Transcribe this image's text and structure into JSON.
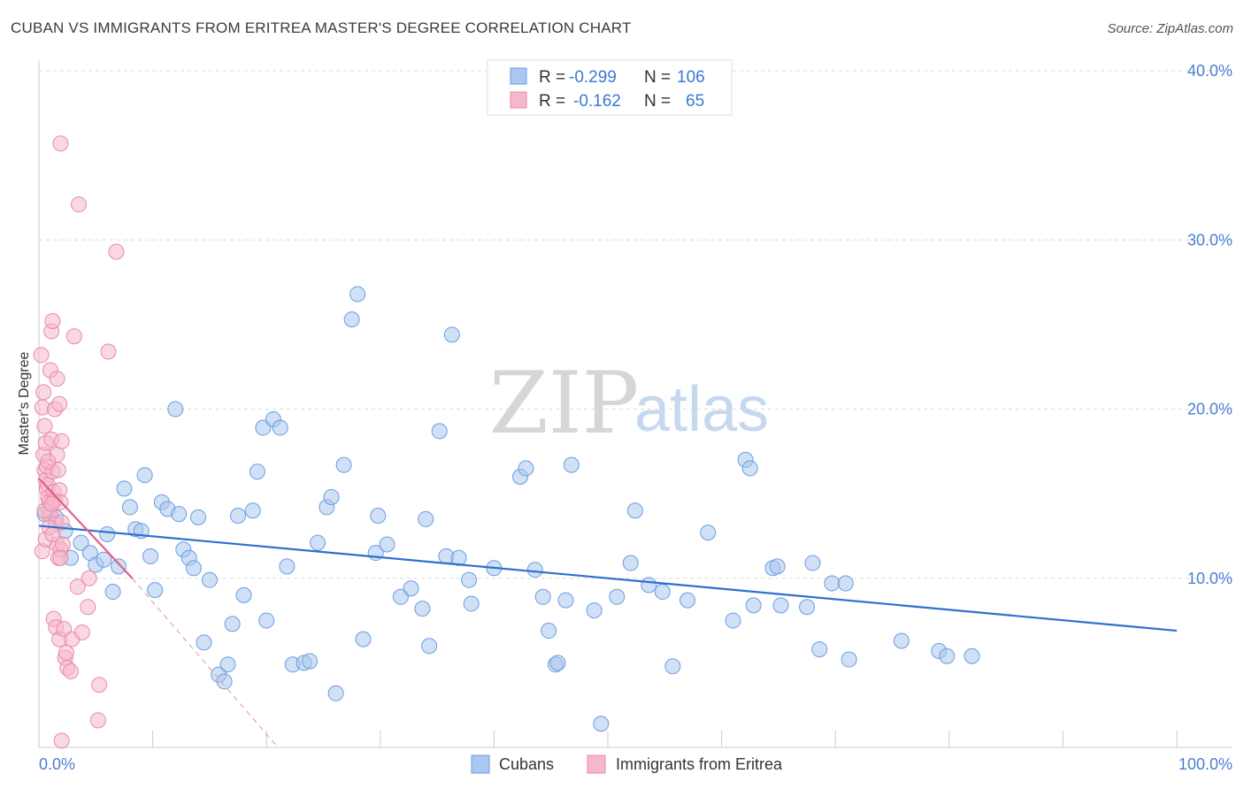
{
  "header": {
    "title": "CUBAN VS IMMIGRANTS FROM ERITREA MASTER'S DEGREE CORRELATION CHART",
    "source": "Source: ZipAtlas.com"
  },
  "watermark": {
    "zip": "ZIP",
    "atlas": "atlas"
  },
  "legend_box": {
    "rows": [
      {
        "r_label": "R =",
        "r_value": "-0.299",
        "n_label": "N =",
        "n_value": "106",
        "color": "#a9c7ef"
      },
      {
        "r_label": "R =",
        "r_value": "-0.162",
        "n_label": "N =",
        "n_value": "65",
        "color": "#f5b8cb"
      }
    ]
  },
  "bottom_legend": [
    {
      "label": "Cubans",
      "color": "#a9c7ef"
    },
    {
      "label": "Immigrants from Eritrea",
      "color": "#f5b8cb"
    }
  ],
  "chart_data": {
    "type": "scatter",
    "xlabel": "",
    "ylabel": "Master's Degree",
    "xlim": [
      0,
      100
    ],
    "ylim": [
      0,
      40
    ],
    "x_tick_labels": [
      "0.0%",
      "100.0%"
    ],
    "y_ticks": [
      10,
      20,
      30,
      40
    ],
    "y_tick_labels": [
      "10.0%",
      "20.0%",
      "30.0%",
      "40.0%"
    ],
    "grid": true,
    "legend_placement": "top-center",
    "series": [
      {
        "name": "Cubans",
        "color": "#a9c7ef",
        "stroke": "#6a9ee0",
        "trend": {
          "x0": 0,
          "y0": 13.1,
          "x1": 100,
          "y1": 6.9,
          "color": "#2f6fd0"
        },
        "points": [
          [
            0.5,
            13.8
          ],
          [
            1.5,
            13.6
          ],
          [
            2.3,
            12.8
          ],
          [
            2.8,
            11.2
          ],
          [
            3.7,
            12.1
          ],
          [
            4.5,
            11.5
          ],
          [
            5.0,
            10.8
          ],
          [
            5.7,
            11.1
          ],
          [
            6.0,
            12.6
          ],
          [
            6.5,
            9.2
          ],
          [
            7.0,
            10.7
          ],
          [
            7.5,
            15.3
          ],
          [
            8.0,
            14.2
          ],
          [
            8.5,
            12.9
          ],
          [
            9.0,
            12.8
          ],
          [
            9.3,
            16.1
          ],
          [
            9.8,
            11.3
          ],
          [
            10.2,
            9.3
          ],
          [
            10.8,
            14.5
          ],
          [
            11.3,
            14.1
          ],
          [
            12.0,
            20.0
          ],
          [
            12.3,
            13.8
          ],
          [
            12.7,
            11.7
          ],
          [
            13.2,
            11.2
          ],
          [
            13.6,
            10.6
          ],
          [
            14.0,
            13.6
          ],
          [
            14.5,
            6.2
          ],
          [
            15.0,
            9.9
          ],
          [
            15.8,
            4.3
          ],
          [
            16.3,
            3.9
          ],
          [
            16.6,
            4.9
          ],
          [
            17.0,
            7.3
          ],
          [
            17.5,
            13.7
          ],
          [
            18.0,
            9.0
          ],
          [
            18.8,
            14.0
          ],
          [
            19.2,
            16.3
          ],
          [
            19.7,
            18.9
          ],
          [
            20.0,
            7.5
          ],
          [
            20.6,
            19.4
          ],
          [
            21.2,
            18.9
          ],
          [
            21.8,
            10.7
          ],
          [
            22.3,
            4.9
          ],
          [
            23.3,
            5.0
          ],
          [
            23.8,
            5.1
          ],
          [
            24.5,
            12.1
          ],
          [
            25.3,
            14.2
          ],
          [
            25.7,
            14.8
          ],
          [
            26.1,
            3.2
          ],
          [
            26.8,
            16.7
          ],
          [
            27.5,
            25.3
          ],
          [
            28.0,
            26.8
          ],
          [
            28.5,
            6.4
          ],
          [
            29.6,
            11.5
          ],
          [
            29.8,
            13.7
          ],
          [
            30.6,
            12.0
          ],
          [
            31.8,
            8.9
          ],
          [
            32.7,
            9.4
          ],
          [
            33.7,
            8.2
          ],
          [
            34.3,
            6.0
          ],
          [
            34.0,
            13.5
          ],
          [
            35.2,
            18.7
          ],
          [
            35.8,
            11.3
          ],
          [
            36.3,
            24.4
          ],
          [
            36.9,
            11.2
          ],
          [
            37.8,
            9.9
          ],
          [
            38.0,
            8.5
          ],
          [
            40.0,
            10.6
          ],
          [
            42.3,
            16.0
          ],
          [
            42.8,
            16.5
          ],
          [
            43.6,
            10.5
          ],
          [
            44.3,
            8.9
          ],
          [
            44.8,
            6.9
          ],
          [
            45.4,
            4.9
          ],
          [
            45.6,
            5.0
          ],
          [
            46.3,
            8.7
          ],
          [
            46.8,
            16.7
          ],
          [
            48.8,
            8.1
          ],
          [
            49.4,
            1.4
          ],
          [
            50.8,
            8.9
          ],
          [
            52.0,
            10.9
          ],
          [
            52.4,
            14.0
          ],
          [
            53.6,
            9.6
          ],
          [
            54.8,
            9.2
          ],
          [
            55.7,
            4.8
          ],
          [
            57.0,
            8.7
          ],
          [
            58.8,
            12.7
          ],
          [
            61.0,
            7.5
          ],
          [
            62.1,
            17.0
          ],
          [
            62.5,
            16.5
          ],
          [
            62.8,
            8.4
          ],
          [
            64.5,
            10.6
          ],
          [
            64.9,
            10.7
          ],
          [
            65.2,
            8.4
          ],
          [
            67.5,
            8.3
          ],
          [
            68.0,
            10.9
          ],
          [
            68.6,
            5.8
          ],
          [
            69.7,
            9.7
          ],
          [
            70.9,
            9.7
          ],
          [
            71.2,
            5.2
          ],
          [
            75.8,
            6.3
          ],
          [
            79.1,
            5.7
          ],
          [
            79.8,
            5.4
          ],
          [
            82.0,
            5.4
          ]
        ]
      },
      {
        "name": "Immigrants from Eritrea",
        "color": "#f5b8cb",
        "stroke": "#e88aa8",
        "trend": {
          "x0": 0,
          "y0": 15.9,
          "x1": 8.2,
          "y1": 10.0,
          "dash_x1": 21.0,
          "dash_y1": 0.0,
          "color": "#e0608a"
        },
        "points": [
          [
            0.2,
            23.2
          ],
          [
            0.3,
            20.1
          ],
          [
            0.4,
            17.3
          ],
          [
            0.5,
            16.4
          ],
          [
            0.6,
            15.8
          ],
          [
            0.7,
            15.3
          ],
          [
            0.8,
            14.8
          ],
          [
            0.9,
            14.5
          ],
          [
            0.4,
            21.0
          ],
          [
            0.5,
            19.0
          ],
          [
            0.6,
            18.0
          ],
          [
            0.7,
            16.6
          ],
          [
            0.8,
            15.5
          ],
          [
            0.9,
            14.1
          ],
          [
            1.0,
            13.7
          ],
          [
            0.3,
            11.6
          ],
          [
            1.0,
            22.3
          ],
          [
            1.1,
            18.2
          ],
          [
            1.2,
            16.3
          ],
          [
            1.3,
            15.1
          ],
          [
            1.4,
            14.6
          ],
          [
            1.5,
            13.2
          ],
          [
            1.6,
            12.0
          ],
          [
            1.7,
            11.2
          ],
          [
            1.1,
            24.6
          ],
          [
            1.2,
            25.2
          ],
          [
            1.4,
            20.0
          ],
          [
            1.6,
            17.3
          ],
          [
            1.7,
            16.4
          ],
          [
            1.8,
            15.2
          ],
          [
            1.9,
            14.5
          ],
          [
            2.0,
            13.3
          ],
          [
            1.6,
            21.8
          ],
          [
            1.8,
            20.3
          ],
          [
            2.0,
            18.1
          ],
          [
            1.3,
            7.6
          ],
          [
            1.5,
            7.1
          ],
          [
            1.8,
            6.4
          ],
          [
            1.9,
            11.7
          ],
          [
            2.1,
            12.0
          ],
          [
            1.9,
            11.2
          ],
          [
            2.2,
            7.0
          ],
          [
            2.3,
            5.3
          ],
          [
            2.4,
            5.6
          ],
          [
            2.5,
            4.7
          ],
          [
            2.8,
            4.5
          ],
          [
            2.9,
            6.4
          ],
          [
            3.1,
            24.3
          ],
          [
            3.4,
            9.5
          ],
          [
            3.5,
            32.1
          ],
          [
            3.8,
            6.8
          ],
          [
            4.3,
            8.3
          ],
          [
            4.4,
            10.0
          ],
          [
            5.3,
            3.7
          ],
          [
            5.2,
            1.6
          ],
          [
            6.1,
            23.4
          ],
          [
            6.8,
            29.3
          ],
          [
            1.9,
            35.7
          ],
          [
            2.0,
            0.4
          ],
          [
            0.6,
            12.3
          ],
          [
            0.9,
            13.0
          ],
          [
            1.2,
            12.6
          ],
          [
            0.5,
            14.0
          ],
          [
            1.1,
            14.4
          ],
          [
            0.8,
            16.9
          ]
        ]
      }
    ]
  }
}
